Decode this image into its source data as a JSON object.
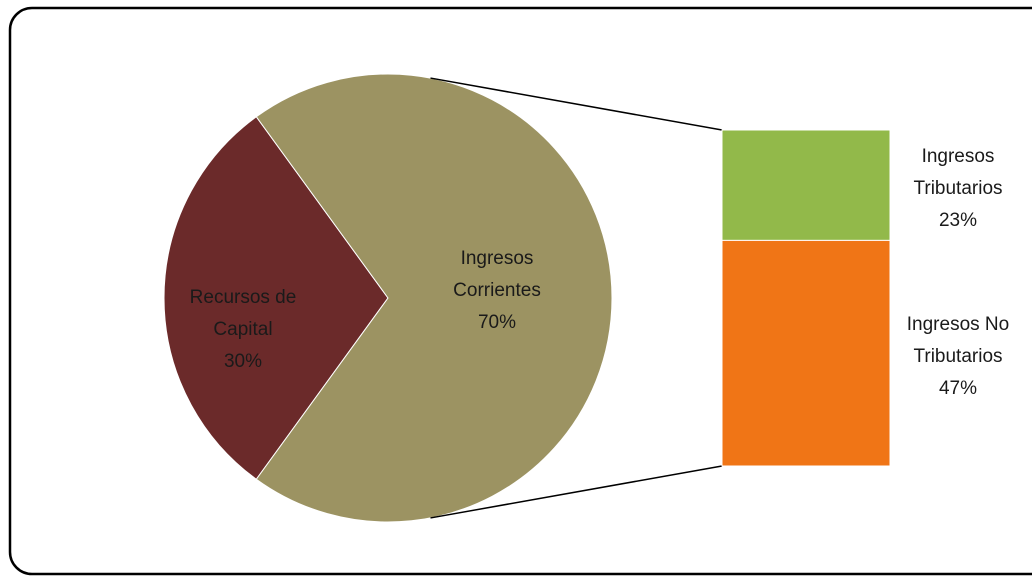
{
  "chart_data": {
    "type": "bar-of-pie",
    "pie": {
      "categories": [
        "Recursos de Capital",
        "Ingresos Corrientes"
      ],
      "values": [
        30,
        70
      ],
      "value_labels": [
        "30%",
        "70%"
      ],
      "colors": [
        "#6b2a2a",
        "#9c9362"
      ]
    },
    "bar": {
      "categories": [
        "Ingresos Tributarios",
        "Ingresos No Tributarios"
      ],
      "values": [
        23,
        47
      ],
      "value_labels": [
        "23%",
        "47%"
      ],
      "colors": [
        "#92b94a",
        "#f07516"
      ]
    }
  }
}
